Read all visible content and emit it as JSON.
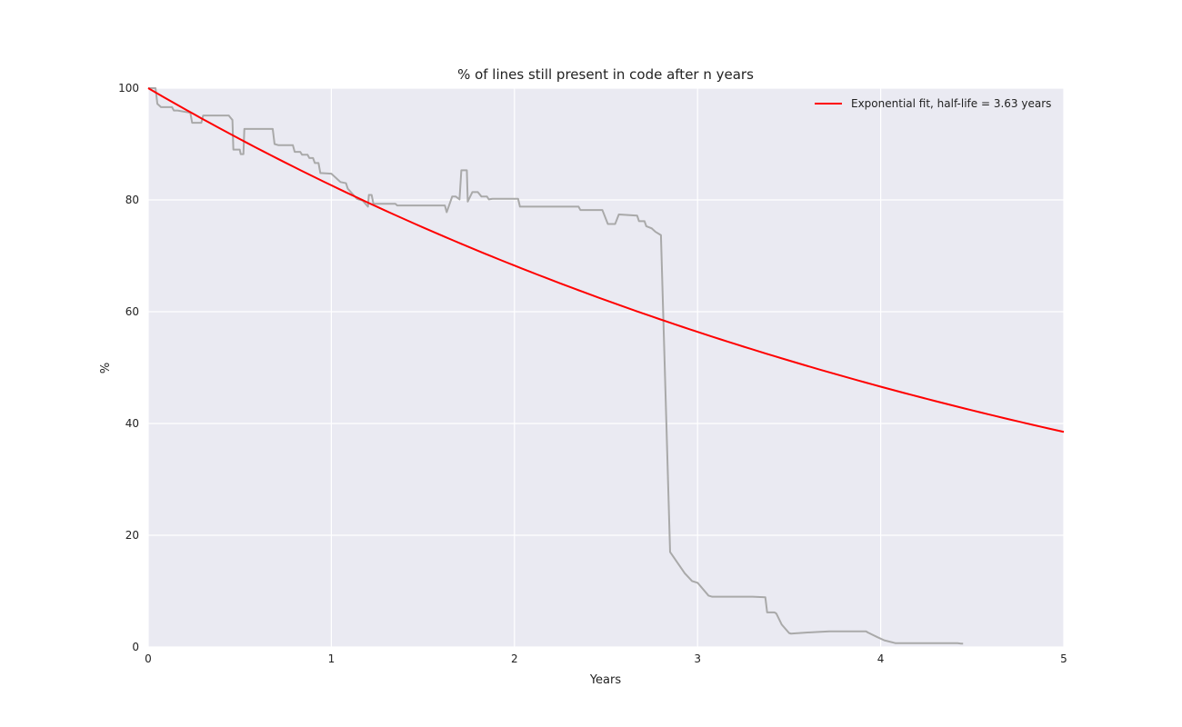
{
  "chart_data": {
    "type": "line",
    "title": "% of lines still present in code after n years",
    "xlabel": "Years",
    "ylabel": "%",
    "xlim": [
      0,
      5
    ],
    "ylim": [
      0,
      100
    ],
    "xticks": [
      0,
      1,
      2,
      3,
      4,
      5
    ],
    "xtick_labels": [
      "0",
      "1",
      "2",
      "3",
      "4",
      "5"
    ],
    "yticks": [
      0,
      20,
      40,
      60,
      80,
      100
    ],
    "ytick_labels": [
      "0",
      "20",
      "40",
      "60",
      "80",
      "100"
    ],
    "grid": true,
    "legend_position": "top-right",
    "background_color": "#eaeaf2",
    "series": [
      {
        "color": "#a9a9a9",
        "x": [
          0.0,
          0.04,
          0.05,
          0.07,
          0.13,
          0.14,
          0.16,
          0.23,
          0.24,
          0.29,
          0.3,
          0.44,
          0.46,
          0.465,
          0.5,
          0.505,
          0.52,
          0.525,
          0.68,
          0.69,
          0.71,
          0.79,
          0.8,
          0.83,
          0.84,
          0.87,
          0.88,
          0.9,
          0.91,
          0.93,
          0.94,
          0.95,
          1.0,
          1.01,
          1.04,
          1.05,
          1.08,
          1.09,
          1.14,
          1.17,
          1.2,
          1.205,
          1.22,
          1.23,
          1.35,
          1.36,
          1.4,
          1.62,
          1.63,
          1.66,
          1.68,
          1.7,
          1.71,
          1.74,
          1.745,
          1.77,
          1.8,
          1.82,
          1.85,
          1.86,
          1.88,
          2.02,
          2.03,
          2.35,
          2.36,
          2.48,
          2.51,
          2.55,
          2.57,
          2.67,
          2.68,
          2.71,
          2.72,
          2.75,
          2.77,
          2.8,
          2.85,
          2.93,
          2.97,
          3.0,
          3.06,
          3.08,
          3.3,
          3.37,
          3.38,
          3.42,
          3.43,
          3.46,
          3.5,
          3.51,
          3.6,
          3.66,
          3.72,
          3.92,
          3.93,
          3.98,
          4.02,
          4.08,
          4.3,
          4.42,
          4.44,
          4.45
        ],
        "y": [
          100.0,
          100.0,
          97.2,
          96.6,
          96.6,
          96.0,
          96.0,
          95.6,
          93.8,
          93.8,
          95.1,
          95.1,
          94.3,
          89.0,
          89.0,
          88.2,
          88.2,
          92.7,
          92.7,
          90.0,
          89.8,
          89.8,
          88.6,
          88.6,
          88.1,
          88.1,
          87.5,
          87.5,
          86.6,
          86.6,
          84.8,
          84.8,
          84.7,
          84.4,
          83.5,
          83.2,
          83.0,
          82.0,
          80.2,
          79.9,
          78.8,
          80.9,
          80.9,
          79.3,
          79.3,
          79.0,
          79.0,
          79.0,
          77.8,
          80.6,
          80.6,
          80.1,
          85.3,
          85.3,
          79.7,
          81.4,
          81.4,
          80.6,
          80.6,
          80.1,
          80.2,
          80.2,
          78.8,
          78.8,
          78.2,
          78.2,
          75.7,
          75.7,
          77.4,
          77.2,
          76.2,
          76.2,
          75.3,
          74.9,
          74.3,
          73.7,
          17.0,
          13.2,
          11.8,
          11.5,
          9.2,
          9.0,
          9.0,
          8.9,
          6.2,
          6.2,
          6.0,
          4.0,
          2.5,
          2.4,
          2.6,
          2.7,
          2.8,
          2.8,
          2.6,
          1.8,
          1.2,
          0.7,
          0.7,
          0.7,
          0.6,
          0.6
        ]
      },
      {
        "name": "Exponential fit, half-life = 3.63 years",
        "color": "#ff0000",
        "function": "exponential",
        "y0": 100,
        "half_life": 3.63,
        "x_range": [
          0,
          5
        ]
      }
    ]
  }
}
